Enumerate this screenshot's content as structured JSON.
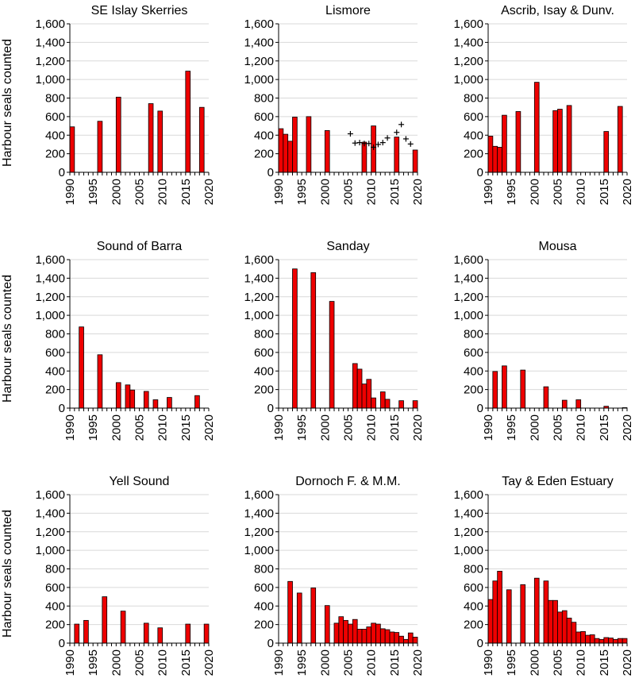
{
  "ylabel": "Harbour seals counted",
  "colors": {
    "bar": "#ee0000",
    "bar_stroke": "#000000",
    "grid": "#d9d9d9",
    "cross": "#000000"
  },
  "chart_data": [
    {
      "type": "bar",
      "title": "SE Islay Skerries",
      "ylabel": "Harbour seals counted",
      "xlim": [
        1990,
        2020
      ],
      "ylim": [
        0,
        1600
      ],
      "xticks": [
        "1990",
        "1995",
        "2000",
        "2005",
        "2010",
        "2015",
        "2020"
      ],
      "yticks": [
        "0",
        "200",
        "400",
        "600",
        "800",
        "1,000",
        "1,200",
        "1,400",
        "1,600"
      ],
      "grid": true,
      "x": [
        1990,
        1996,
        2000,
        2007,
        2009,
        2015,
        2018
      ],
      "values": [
        490,
        550,
        810,
        740,
        660,
        1090,
        700
      ]
    },
    {
      "type": "bar",
      "title": "Lismore",
      "ylabel": "",
      "xlim": [
        1990,
        2020
      ],
      "ylim": [
        0,
        1600
      ],
      "xticks": [
        "1990",
        "1995",
        "2000",
        "2005",
        "2010",
        "2015",
        "2020"
      ],
      "yticks": [
        "0",
        "200",
        "400",
        "600",
        "800",
        "1,000",
        "1,200",
        "1,400",
        "1,600"
      ],
      "grid": true,
      "x": [
        1990,
        1991,
        1992,
        1993,
        1996,
        2000,
        2008,
        2010,
        2015,
        2019
      ],
      "values": [
        470,
        410,
        335,
        595,
        600,
        450,
        325,
        500,
        380,
        240
      ],
      "crosses": {
        "x": [
          2005,
          2006,
          2007,
          2008,
          2009,
          2010,
          2011,
          2012,
          2013,
          2015,
          2016,
          2017,
          2018
        ],
        "y": [
          415,
          315,
          320,
          310,
          310,
          270,
          300,
          320,
          370,
          430,
          515,
          360,
          305
        ]
      }
    },
    {
      "type": "bar",
      "title": "Ascrib, Isay & Dunv.",
      "ylabel": "",
      "xlim": [
        1990,
        2020
      ],
      "ylim": [
        0,
        1600
      ],
      "xticks": [
        "1990",
        "1995",
        "2000",
        "2005",
        "2010",
        "2015",
        "2020"
      ],
      "yticks": [
        "0",
        "200",
        "400",
        "600",
        "800",
        "1,000",
        "1,200",
        "1,400",
        "1,600"
      ],
      "grid": true,
      "x": [
        1990,
        1991,
        1992,
        1993,
        1996,
        2000,
        2004,
        2005,
        2007,
        2015,
        2018
      ],
      "values": [
        390,
        280,
        270,
        615,
        655,
        970,
        665,
        680,
        720,
        440,
        710
      ]
    },
    {
      "type": "bar",
      "title": "Sound of Barra",
      "ylabel": "Harbour seals counted",
      "xlim": [
        1990,
        2020
      ],
      "ylim": [
        0,
        1600
      ],
      "xticks": [
        "1990",
        "1995",
        "2000",
        "2005",
        "2010",
        "2015",
        "2020"
      ],
      "yticks": [
        "0",
        "200",
        "400",
        "600",
        "800",
        "1,000",
        "1,200",
        "1,400",
        "1,600"
      ],
      "grid": true,
      "x": [
        1992,
        1996,
        2000,
        2002,
        2003,
        2006,
        2008,
        2011,
        2017
      ],
      "values": [
        875,
        575,
        275,
        250,
        195,
        180,
        90,
        115,
        135
      ]
    },
    {
      "type": "bar",
      "title": "Sanday",
      "ylabel": "",
      "xlim": [
        1990,
        2020
      ],
      "ylim": [
        0,
        1600
      ],
      "xticks": [
        "1990",
        "1995",
        "2000",
        "2005",
        "2010",
        "2015",
        "2020"
      ],
      "yticks": [
        "0",
        "200",
        "400",
        "600",
        "800",
        "1,000",
        "1,200",
        "1,400",
        "1,600"
      ],
      "grid": true,
      "x": [
        1993,
        1997,
        2001,
        2006,
        2007,
        2008,
        2009,
        2010,
        2012,
        2013,
        2016,
        2019
      ],
      "values": [
        1500,
        1460,
        1150,
        480,
        420,
        260,
        310,
        110,
        175,
        95,
        80,
        80
      ]
    },
    {
      "type": "bar",
      "title": "Mousa",
      "ylabel": "",
      "xlim": [
        1990,
        2020
      ],
      "ylim": [
        0,
        1600
      ],
      "xticks": [
        "1990",
        "1995",
        "2000",
        "2005",
        "2010",
        "2015",
        "2020"
      ],
      "yticks": [
        "0",
        "200",
        "400",
        "600",
        "800",
        "1,000",
        "1,200",
        "1,400",
        "1,600"
      ],
      "grid": true,
      "x": [
        1991,
        1993,
        1997,
        2002,
        2006,
        2009,
        2015,
        2019
      ],
      "values": [
        395,
        455,
        410,
        230,
        85,
        90,
        20,
        5
      ]
    },
    {
      "type": "bar",
      "title": "Yell Sound",
      "ylabel": "Harbour seals counted",
      "xlim": [
        1990,
        2020
      ],
      "ylim": [
        0,
        1600
      ],
      "xticks": [
        "1990",
        "1995",
        "2000",
        "2005",
        "2010",
        "2015",
        "2020"
      ],
      "yticks": [
        "0",
        "200",
        "400",
        "600",
        "800",
        "1,000",
        "1,200",
        "1,400",
        "1,600"
      ],
      "grid": true,
      "x": [
        1991,
        1993,
        1997,
        2001,
        2006,
        2009,
        2015,
        2019
      ],
      "values": [
        205,
        245,
        500,
        345,
        215,
        165,
        205,
        205
      ]
    },
    {
      "type": "bar",
      "title": "Dornoch F. & M.M.",
      "ylabel": "",
      "xlim": [
        1990,
        2020
      ],
      "ylim": [
        0,
        1600
      ],
      "xticks": [
        "1990",
        "1995",
        "2000",
        "2005",
        "2010",
        "2015",
        "2020"
      ],
      "yticks": [
        "0",
        "200",
        "400",
        "600",
        "800",
        "1,000",
        "1,200",
        "1,400",
        "1,600"
      ],
      "grid": true,
      "x": [
        1992,
        1994,
        1997,
        2000,
        2002,
        2003,
        2004,
        2005,
        2006,
        2007,
        2008,
        2009,
        2010,
        2011,
        2012,
        2013,
        2014,
        2015,
        2016,
        2017,
        2018,
        2019
      ],
      "values": [
        665,
        540,
        595,
        405,
        215,
        285,
        245,
        205,
        255,
        150,
        150,
        175,
        215,
        205,
        155,
        145,
        120,
        115,
        75,
        40,
        110,
        65
      ]
    },
    {
      "type": "bar",
      "title": "Tay & Eden Estuary",
      "ylabel": "",
      "xlim": [
        1990,
        2020
      ],
      "ylim": [
        0,
        1600
      ],
      "xticks": [
        "1990",
        "1995",
        "2000",
        "2005",
        "2010",
        "2015",
        "2020"
      ],
      "yticks": [
        "0",
        "200",
        "400",
        "600",
        "800",
        "1,000",
        "1,200",
        "1,400",
        "1,600"
      ],
      "grid": true,
      "x": [
        1990,
        1991,
        1992,
        1994,
        1997,
        2000,
        2002,
        2003,
        2004,
        2005,
        2006,
        2007,
        2008,
        2009,
        2010,
        2011,
        2012,
        2013,
        2014,
        2015,
        2016,
        2017,
        2018,
        2019
      ],
      "values": [
        470,
        670,
        775,
        575,
        630,
        700,
        670,
        460,
        460,
        335,
        350,
        270,
        225,
        120,
        125,
        85,
        90,
        50,
        40,
        60,
        55,
        40,
        50,
        50
      ]
    }
  ]
}
